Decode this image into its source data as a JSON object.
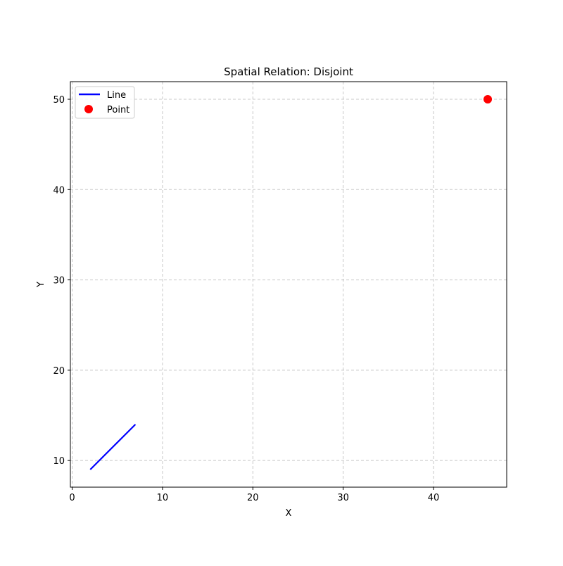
{
  "chart_data": {
    "type": "scatter",
    "title": "Spatial Relation: Disjoint",
    "xlabel": "X",
    "ylabel": "Y",
    "xlim": [
      -0.2,
      48.1
    ],
    "ylim": [
      7.05,
      51.95
    ],
    "xticks": [
      0,
      10,
      20,
      30,
      40
    ],
    "yticks": [
      10,
      20,
      30,
      40,
      50
    ],
    "grid": true,
    "legend_position": "upper left",
    "series": [
      {
        "name": "Line",
        "kind": "line",
        "color": "#0000ff",
        "x": [
          2,
          7
        ],
        "y": [
          9,
          14
        ]
      },
      {
        "name": "Point",
        "kind": "point",
        "color": "#ff0000",
        "x": [
          46
        ],
        "y": [
          50
        ]
      }
    ]
  }
}
